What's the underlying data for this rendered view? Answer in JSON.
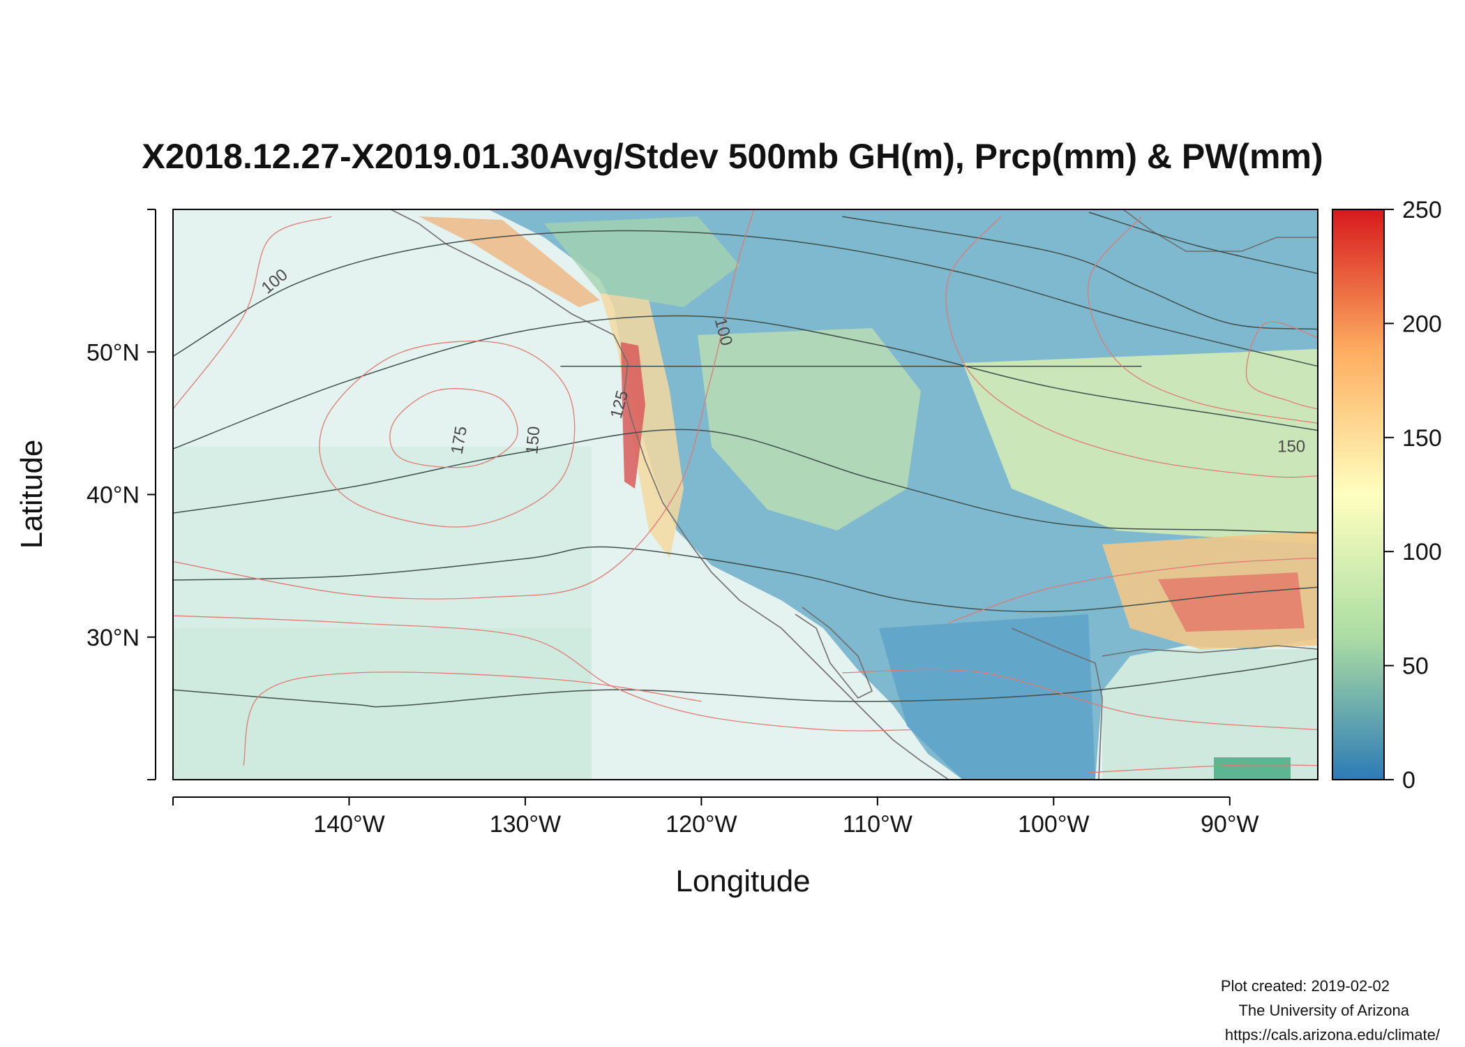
{
  "title": "X2018.12.27-X2019.01.30Avg/Stdev 500mb GH(m), Prcp(mm) & PW(mm)",
  "footer": {
    "created": "Plot created: 2019-02-02",
    "org": "The University of Arizona",
    "url": "https://cals.arizona.edu/climate/"
  },
  "chart_data": {
    "type": "heatmap",
    "title": "X2018.12.27-X2019.01.30Avg/Stdev 500mb GH(m), Prcp(mm) & PW(mm)",
    "xlabel": "Longitude",
    "ylabel": "Latitude",
    "xlim": [
      -150,
      -85
    ],
    "ylim": [
      20,
      60
    ],
    "x_ticks": [
      {
        "value": -140,
        "label": "140°W"
      },
      {
        "value": -130,
        "label": "130°W"
      },
      {
        "value": -120,
        "label": "120°W"
      },
      {
        "value": -110,
        "label": "110°W"
      },
      {
        "value": -100,
        "label": "100°W"
      },
      {
        "value": -90,
        "label": "90°W"
      }
    ],
    "y_ticks": [
      {
        "value": 30,
        "label": "30°N"
      },
      {
        "value": 40,
        "label": "40°N"
      },
      {
        "value": 50,
        "label": "50°N"
      }
    ],
    "colorbar": {
      "range": [
        0,
        250
      ],
      "ticks": [
        "0",
        "50",
        "100",
        "150",
        "200",
        "250"
      ],
      "colors": [
        "#2c7bb6",
        "#abdda4",
        "#ffffbf",
        "#fdae61",
        "#d7191c"
      ]
    },
    "contour_labels": [
      {
        "text": "100",
        "lon": -144.2,
        "lat": 54.9,
        "angle": -40
      },
      {
        "text": "100",
        "lon": -118.8,
        "lat": 51.4,
        "angle": 75
      },
      {
        "text": "125",
        "lon": -124.6,
        "lat": 46.3,
        "angle": -75
      },
      {
        "text": "175",
        "lon": -133.7,
        "lat": 43.8,
        "angle": -80
      },
      {
        "text": "150",
        "lon": -129.5,
        "lat": 43.8,
        "angle": -85
      },
      {
        "text": "150",
        "lon": -86.5,
        "lat": 43.3,
        "angle": 0
      }
    ],
    "gh_contours": [
      {
        "points": [
          [
            -150,
            49.7
          ],
          [
            -143,
            54.8
          ],
          [
            -135,
            57.5
          ],
          [
            -125,
            58.5
          ],
          [
            -115,
            57.8
          ],
          [
            -105,
            55.5
          ],
          [
            -95,
            52
          ],
          [
            -85,
            49
          ]
        ]
      },
      {
        "points": [
          [
            -150,
            43.2
          ],
          [
            -140,
            48
          ],
          [
            -130,
            51.5
          ],
          [
            -120,
            52.5
          ],
          [
            -110,
            50.5
          ],
          [
            -100,
            47.5
          ],
          [
            -90,
            45.5
          ],
          [
            -85,
            44.5
          ]
        ]
      },
      {
        "points": [
          [
            -150,
            38.7
          ],
          [
            -140,
            40.5
          ],
          [
            -130,
            43
          ],
          [
            -120,
            44.5
          ],
          [
            -110,
            41
          ],
          [
            -100,
            38
          ],
          [
            -90,
            37.5
          ],
          [
            -85,
            37.3
          ]
        ]
      },
      {
        "points": [
          [
            -150,
            34
          ],
          [
            -140,
            34.3
          ],
          [
            -130,
            35.5
          ],
          [
            -125,
            36.3
          ],
          [
            -115,
            34.5
          ],
          [
            -108,
            32.5
          ],
          [
            -100,
            31.8
          ],
          [
            -90,
            33
          ],
          [
            -85,
            33.5
          ]
        ]
      },
      {
        "points": [
          [
            -150,
            26.3
          ],
          [
            -140,
            25.3
          ],
          [
            -137,
            25.2
          ],
          [
            -125,
            26.3
          ],
          [
            -112,
            25.5
          ],
          [
            -100,
            26
          ],
          [
            -90,
            27.5
          ],
          [
            -85,
            28.5
          ]
        ]
      },
      {
        "points": [
          [
            -112,
            59.5
          ],
          [
            -100,
            57
          ],
          [
            -95,
            54.5
          ],
          [
            -90,
            52
          ],
          [
            -85,
            51.6
          ]
        ]
      },
      {
        "points": [
          [
            -98,
            59.8
          ],
          [
            -92,
            57.5
          ],
          [
            -85,
            55.5
          ]
        ]
      },
      {
        "points": [
          [
            -128,
            49
          ],
          [
            -100,
            49
          ],
          [
            -95,
            49
          ]
        ]
      }
    ],
    "pw_contours": [
      {
        "closed": true,
        "points": [
          [
            -137.5,
            45
          ],
          [
            -135,
            47.3
          ],
          [
            -131.5,
            46.8
          ],
          [
            -130.5,
            44
          ],
          [
            -133,
            42
          ],
          [
            -137,
            42.5
          ]
        ]
      },
      {
        "closed": true,
        "points": [
          [
            -141,
            46
          ],
          [
            -137,
            50
          ],
          [
            -131,
            50.5
          ],
          [
            -127.5,
            47
          ],
          [
            -128,
            41
          ],
          [
            -133,
            37.8
          ],
          [
            -139,
            39
          ],
          [
            -141.5,
            42
          ]
        ]
      },
      {
        "closed": false,
        "points": [
          [
            -150,
            46
          ],
          [
            -146,
            52.5
          ],
          [
            -144.5,
            58
          ],
          [
            -141,
            59.5
          ]
        ]
      },
      {
        "closed": false,
        "points": [
          [
            -150,
            35.3
          ],
          [
            -140,
            33
          ],
          [
            -132,
            32.8
          ],
          [
            -126,
            34
          ],
          [
            -121.5,
            40
          ],
          [
            -119.5,
            48
          ],
          [
            -118,
            56
          ],
          [
            -117,
            60
          ]
        ]
      },
      {
        "closed": false,
        "points": [
          [
            -150,
            31.5
          ],
          [
            -140,
            31
          ],
          [
            -130,
            30
          ],
          [
            -125,
            26.5
          ],
          [
            -120,
            24.5
          ],
          [
            -113,
            23.5
          ],
          [
            -108,
            23.5
          ]
        ]
      },
      {
        "closed": false,
        "points": [
          [
            -146,
            21
          ],
          [
            -145,
            26
          ],
          [
            -139.5,
            27.5
          ],
          [
            -128,
            27
          ],
          [
            -120,
            25.5
          ]
        ]
      },
      {
        "closed": false,
        "points": [
          [
            -103,
            59.5
          ],
          [
            -106,
            55
          ],
          [
            -105,
            49
          ],
          [
            -101,
            45
          ],
          [
            -95,
            42.5
          ],
          [
            -88,
            41.3
          ],
          [
            -85,
            41.3
          ]
        ]
      },
      {
        "closed": false,
        "points": [
          [
            -95,
            59.5
          ],
          [
            -98,
            55
          ],
          [
            -96.5,
            49.5
          ],
          [
            -92,
            46.5
          ],
          [
            -85,
            45
          ]
        ]
      },
      {
        "closed": false,
        "points": [
          [
            -85,
            51
          ],
          [
            -88,
            52
          ],
          [
            -89,
            48
          ],
          [
            -86.5,
            46.5
          ],
          [
            -85,
            46
          ]
        ]
      },
      {
        "closed": false,
        "points": [
          [
            -106,
            31
          ],
          [
            -100,
            33.5
          ],
          [
            -92,
            35
          ],
          [
            -86,
            35.5
          ],
          [
            -85,
            35.5
          ]
        ]
      },
      {
        "closed": false,
        "points": [
          [
            -112,
            27.5
          ],
          [
            -104,
            27.5
          ],
          [
            -95,
            24.5
          ],
          [
            -85,
            23.5
          ]
        ]
      },
      {
        "closed": false,
        "points": [
          [
            -98,
            20.5
          ],
          [
            -90,
            21
          ],
          [
            -85,
            21
          ]
        ]
      }
    ]
  }
}
